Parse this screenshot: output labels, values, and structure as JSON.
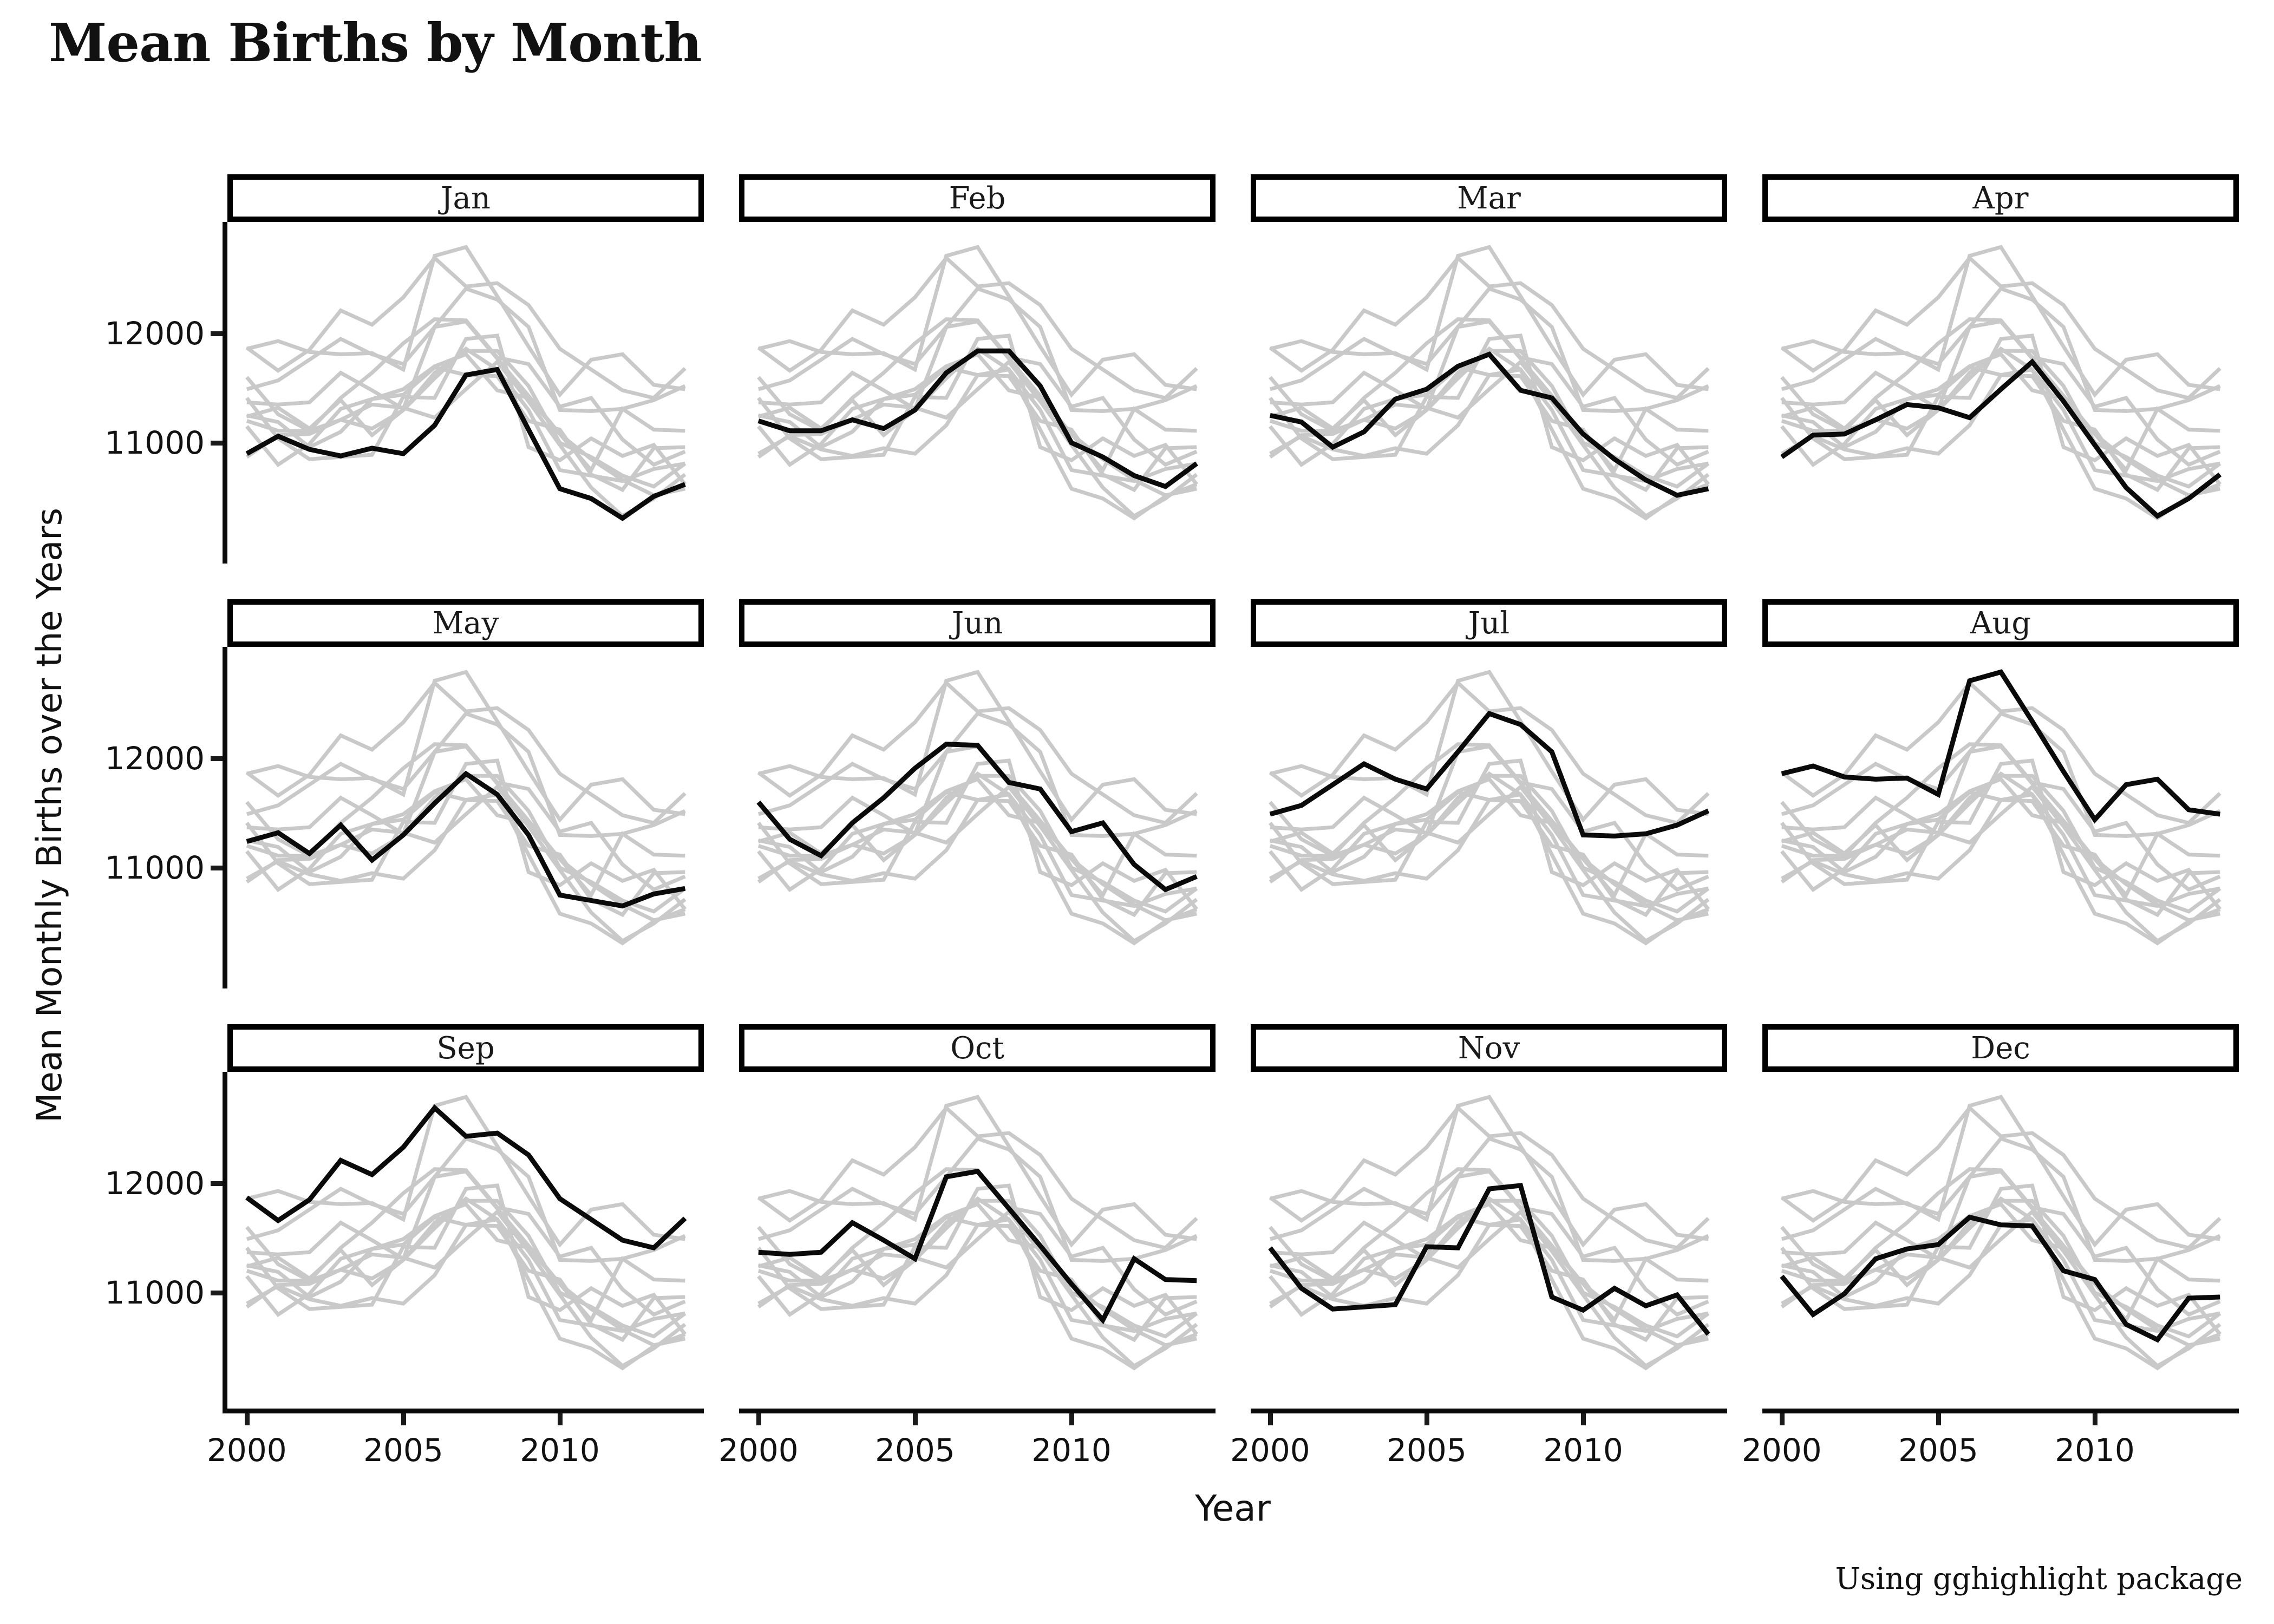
{
  "title": "Mean Births by Month",
  "y_axis": {
    "title": "Mean Monthly Births over the Years",
    "tick_labels": [
      "12000",
      "11000"
    ],
    "tick_values": [
      12000,
      11000
    ]
  },
  "x_axis": {
    "title": "Year",
    "tick_labels": [
      "2000",
      "2005",
      "2010"
    ],
    "tick_values": [
      2000,
      2005,
      2010
    ]
  },
  "caption": "Using gghighlight package",
  "chart_data": {
    "type": "line",
    "description": "Faceted line chart (facet per month). In each facet all 12 monthly series are drawn in light gray and the facet's own month is highlighted in black (gghighlight style).",
    "facets": [
      "Jan",
      "Feb",
      "Mar",
      "Apr",
      "May",
      "Jun",
      "Jul",
      "Aug",
      "Sep",
      "Oct",
      "Nov",
      "Dec"
    ],
    "x": [
      2000,
      2001,
      2002,
      2003,
      2004,
      2005,
      2006,
      2007,
      2008,
      2009,
      2010,
      2011,
      2012,
      2013,
      2014
    ],
    "series": [
      {
        "name": "Jan",
        "values": [
          10900,
          11060,
          10940,
          10880,
          10950,
          10900,
          11160,
          11620,
          11670,
          11120,
          10580,
          10490,
          10310,
          10510,
          10620
        ]
      },
      {
        "name": "Feb",
        "values": [
          11200,
          11110,
          11110,
          11210,
          11130,
          11300,
          11640,
          11840,
          11840,
          11520,
          11000,
          10870,
          10700,
          10600,
          10810
        ]
      },
      {
        "name": "Mar",
        "values": [
          11250,
          11190,
          10960,
          11100,
          11400,
          11490,
          11700,
          11810,
          11480,
          11410,
          11080,
          10850,
          10660,
          10520,
          10580
        ]
      },
      {
        "name": "Apr",
        "values": [
          10870,
          11070,
          11080,
          11210,
          11350,
          11320,
          11230,
          11490,
          11740,
          11380,
          10980,
          10590,
          10330,
          10490,
          10710
        ]
      },
      {
        "name": "May",
        "values": [
          11240,
          11320,
          11130,
          11390,
          11070,
          11300,
          11590,
          11860,
          11670,
          11300,
          10750,
          10700,
          10650,
          10760,
          10810
        ]
      },
      {
        "name": "Jun",
        "values": [
          11600,
          11260,
          11110,
          11410,
          11640,
          11910,
          12130,
          12120,
          11780,
          11720,
          11330,
          11410,
          11030,
          10800,
          10920
        ]
      },
      {
        "name": "Jul",
        "values": [
          11490,
          11570,
          11760,
          11950,
          11810,
          11720,
          12060,
          12410,
          12310,
          12060,
          11300,
          11290,
          11310,
          11390,
          11520
        ]
      },
      {
        "name": "Aug",
        "values": [
          11860,
          11930,
          11830,
          11810,
          11820,
          11670,
          12710,
          12790,
          12340,
          11880,
          11440,
          11760,
          11810,
          11530,
          11490
        ]
      },
      {
        "name": "Sep",
        "values": [
          11870,
          11660,
          11850,
          12210,
          12080,
          12330,
          12690,
          12430,
          12460,
          12260,
          11860,
          11670,
          11480,
          11410,
          11680
        ]
      },
      {
        "name": "Oct",
        "values": [
          11370,
          11350,
          11370,
          11640,
          11480,
          11310,
          12060,
          12110,
          11770,
          11430,
          11080,
          10750,
          11310,
          11120,
          11110
        ]
      },
      {
        "name": "Nov",
        "values": [
          11410,
          11040,
          10850,
          10870,
          10890,
          11420,
          11410,
          11950,
          11980,
          10960,
          10840,
          11040,
          10880,
          10980,
          10620
        ]
      },
      {
        "name": "Dec",
        "values": [
          11150,
          10800,
          10990,
          11310,
          11400,
          11440,
          11690,
          11620,
          11610,
          11200,
          11120,
          10710,
          10570,
          10950,
          10960
        ]
      }
    ],
    "colors": {
      "highlight": "#0a0a0a",
      "background_series": "#c9c9c9"
    },
    "ylim": [
      9940,
      13020
    ],
    "xlim": [
      1999.38,
      2014.6
    ],
    "grid": "off",
    "legend": "none"
  }
}
